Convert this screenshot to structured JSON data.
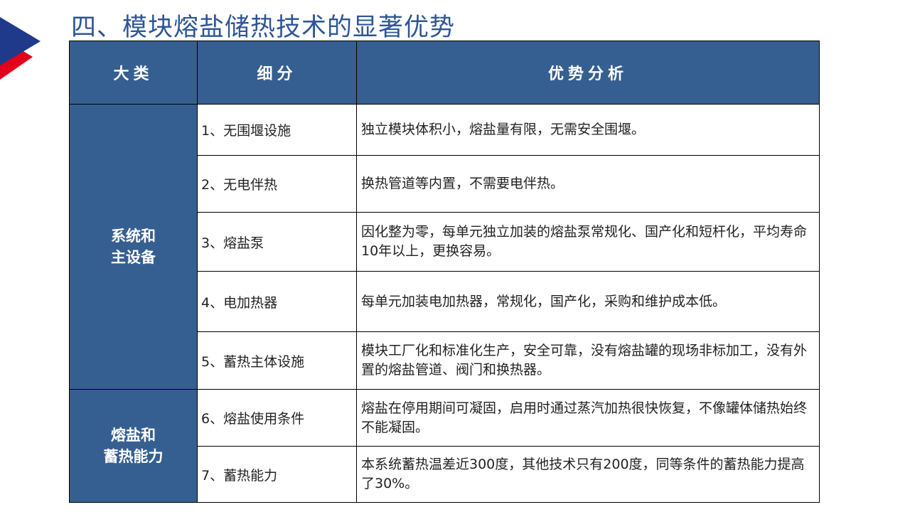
{
  "title": "四、模块熔盐储热技术的显著优势",
  "colors": {
    "header_bg": "#365f91",
    "title": "#2f5597",
    "logo_blue": "#1f3a8a",
    "logo_red": "#e3001b"
  },
  "table": {
    "headers": [
      "大类",
      "细分",
      "优势分析"
    ],
    "groups": [
      {
        "label_lines": [
          "系统和",
          "主设备"
        ],
        "rows": [
          {
            "item": "1、无围堰设施",
            "analysis": "独立模块体积小，熔盐量有限，无需安全围堰。"
          },
          {
            "item": "2、无电伴热",
            "analysis": "换热管道等内置，不需要电伴热。"
          },
          {
            "item": "3、熔盐泵",
            "analysis": "因化整为零，每单元独立加装的熔盐泵常规化、国产化和短杆化，平均寿命10年以上，更换容易。"
          },
          {
            "item": "4、电加热器",
            "analysis": "每单元加装电加热器，常规化，国产化，采购和维护成本低。"
          },
          {
            "item": "5、蓄热主体设施",
            "analysis": "模块工厂化和标准化生产，安全可靠，没有熔盐罐的现场非标加工，没有外置的熔盐管道、阀门和换热器。"
          }
        ]
      },
      {
        "label_lines": [
          "熔盐和",
          "蓄热能力"
        ],
        "rows": [
          {
            "item": "6、熔盐使用条件",
            "analysis": "熔盐在停用期间可凝固，启用时通过蒸汽加热很快恢复，不像罐体储热始终不能凝固。"
          },
          {
            "item": "7、蓄热能力",
            "analysis": "本系统蓄热温差近300度，其他技术只有200度，同等条件的蓄热能力提高了30%。"
          }
        ]
      }
    ]
  }
}
